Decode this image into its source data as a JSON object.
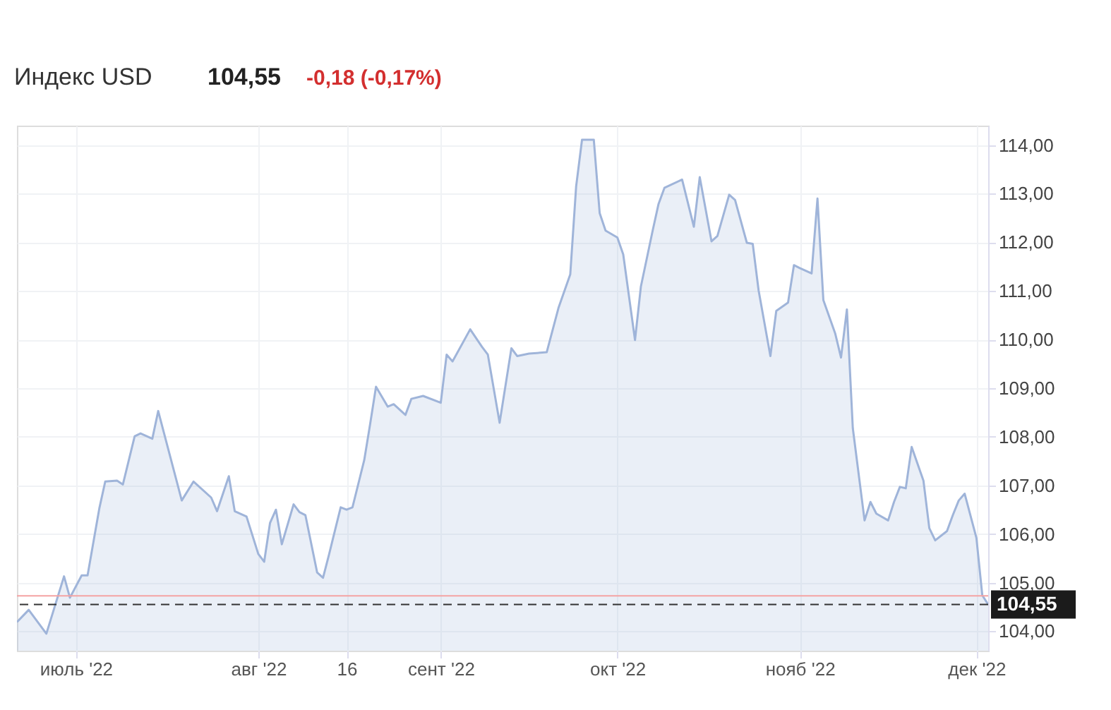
{
  "chart_data": {
    "type": "area",
    "title": "Индекс USD",
    "annotations": [
      "104,55",
      "-0,18 (-0,17%)"
    ],
    "x": [
      "2022-06-21",
      "2022-06-23",
      "2022-06-26",
      "2022-06-29",
      "2022-06-30",
      "2022-07-02",
      "2022-07-03",
      "2022-07-05",
      "2022-07-06",
      "2022-07-08",
      "2022-07-09",
      "2022-07-11",
      "2022-07-12",
      "2022-07-14",
      "2022-07-15",
      "2022-07-16",
      "2022-07-19",
      "2022-07-21",
      "2022-07-24",
      "2022-07-25",
      "2022-07-27",
      "2022-07-28",
      "2022-07-30",
      "2022-08-01",
      "2022-08-02",
      "2022-08-03",
      "2022-08-04",
      "2022-08-05",
      "2022-08-07",
      "2022-08-08",
      "2022-08-09",
      "2022-08-11",
      "2022-08-12",
      "2022-08-13",
      "2022-08-15",
      "2022-08-16",
      "2022-08-17",
      "2022-08-19",
      "2022-08-20",
      "2022-08-21",
      "2022-08-23",
      "2022-08-24",
      "2022-08-26",
      "2022-08-27",
      "2022-08-29",
      "2022-09-01",
      "2022-09-02",
      "2022-09-03",
      "2022-09-06",
      "2022-09-08",
      "2022-09-09",
      "2022-09-11",
      "2022-09-13",
      "2022-09-14",
      "2022-09-16",
      "2022-09-19",
      "2022-09-21",
      "2022-09-23",
      "2022-09-24",
      "2022-09-25",
      "2022-09-27",
      "2022-09-28",
      "2022-09-29",
      "2022-10-01",
      "2022-10-02",
      "2022-10-04",
      "2022-10-05",
      "2022-10-07",
      "2022-10-08",
      "2022-10-09",
      "2022-10-12",
      "2022-10-14",
      "2022-10-15",
      "2022-10-17",
      "2022-10-18",
      "2022-10-20",
      "2022-10-21",
      "2022-10-23",
      "2022-10-24",
      "2022-10-25",
      "2022-10-27",
      "2022-10-28",
      "2022-10-30",
      "2022-10-31",
      "2022-11-01",
      "2022-11-03",
      "2022-11-04",
      "2022-11-05",
      "2022-11-07",
      "2022-11-08",
      "2022-11-09",
      "2022-11-10",
      "2022-11-12",
      "2022-11-13",
      "2022-11-14",
      "2022-11-16",
      "2022-11-17",
      "2022-11-18",
      "2022-11-19",
      "2022-11-20",
      "2022-11-22",
      "2022-11-23",
      "2022-11-24",
      "2022-11-26",
      "2022-11-27",
      "2022-11-28",
      "2022-11-29",
      "2022-12-01",
      "2022-12-02",
      "2022-12-03"
    ],
    "series": [
      {
        "color": "#9fb4d9",
        "values": [
          104.19,
          104.44,
          103.95,
          105.13,
          104.69,
          105.15,
          105.15,
          106.53,
          107.08,
          107.1,
          107.02,
          108.01,
          108.07,
          107.96,
          108.53,
          108.07,
          106.69,
          107.08,
          106.75,
          106.47,
          107.19,
          106.47,
          106.36,
          105.59,
          105.43,
          106.23,
          106.5,
          105.79,
          106.61,
          106.45,
          106.39,
          105.21,
          105.1,
          105.57,
          106.55,
          106.5,
          106.55,
          107.52,
          108.26,
          109.03,
          108.62,
          108.67,
          108.45,
          108.78,
          108.84,
          108.7,
          109.69,
          109.55,
          110.21,
          109.85,
          109.69,
          108.29,
          109.82,
          109.66,
          109.71,
          109.74,
          110.65,
          111.34,
          113.15,
          114.11,
          114.11,
          112.6,
          112.24,
          112.1,
          111.75,
          109.99,
          111.09,
          112.24,
          112.79,
          113.12,
          113.29,
          112.32,
          113.34,
          112.02,
          112.13,
          112.98,
          112.87,
          111.99,
          111.97,
          111.01,
          109.66,
          110.59,
          110.76,
          111.53,
          111.47,
          111.36,
          112.9,
          110.81,
          110.13,
          109.63,
          110.62,
          108.18,
          106.28,
          106.66,
          106.42,
          106.28,
          106.66,
          106.97,
          106.94,
          107.79,
          107.1,
          106.12,
          105.87,
          106.06,
          106.39,
          106.69,
          106.83,
          105.92,
          104.74,
          104.55
        ]
      }
    ],
    "xlim": [
      "2022-06-21",
      "2022-12-03"
    ],
    "xticks": [
      {
        "value": "2022-07-01",
        "label": "июль '22"
      },
      {
        "value": "2022-08-01",
        "label": "авг '22"
      },
      {
        "value": "2022-08-16",
        "label": "16"
      },
      {
        "value": "2022-09-01",
        "label": "сент '22"
      },
      {
        "value": "2022-10-01",
        "label": "окт '22"
      },
      {
        "value": "2022-11-01",
        "label": "нояб '22"
      },
      {
        "value": "2022-12-01",
        "label": "дек '22"
      }
    ],
    "ylim": [
      103.6,
      114.4
    ],
    "yticks": [
      {
        "value": 104,
        "label": "104,00"
      },
      {
        "value": 105,
        "label": "105,00"
      },
      {
        "value": 106,
        "label": "106,00"
      },
      {
        "value": 107,
        "label": "107,00"
      },
      {
        "value": 108,
        "label": "108,00"
      },
      {
        "value": 109,
        "label": "109,00"
      },
      {
        "value": 110,
        "label": "110,00"
      },
      {
        "value": 111,
        "label": "111,00"
      },
      {
        "value": 112,
        "label": "112,00"
      },
      {
        "value": 113,
        "label": "113,00"
      },
      {
        "value": 114,
        "label": "114,00"
      }
    ],
    "ref_lines": [
      {
        "axis": "y",
        "value": 104.73,
        "color": "#f4a3a3",
        "line_style": "solid"
      },
      {
        "axis": "y",
        "value": 104.55,
        "label": "104,55",
        "color": "#333333",
        "line_style": "dashed"
      }
    ],
    "grid": true
  }
}
